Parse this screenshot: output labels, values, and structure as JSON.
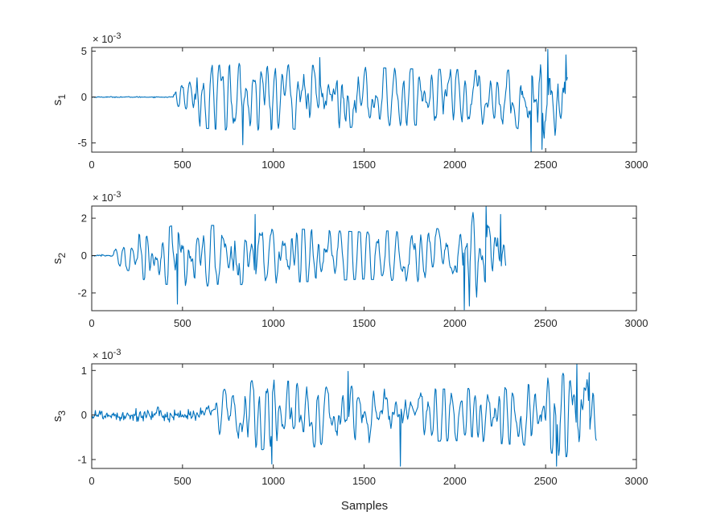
{
  "chart_data": [
    {
      "type": "line",
      "ylabel": "s",
      "ylabel_sub": "1",
      "exponent_base": "× 10",
      "exponent_power": "-3",
      "xlim": [
        0,
        3000
      ],
      "ylim": [
        -6,
        5.4
      ],
      "xticks": [
        0,
        500,
        1000,
        1500,
        2000,
        2500,
        3000
      ],
      "yticks": [
        -5,
        0,
        5
      ],
      "n_samples": 2620,
      "onset": 450,
      "quiet_amp": 0.06,
      "envelope": [
        [
          0,
          0.06
        ],
        [
          440,
          0.06
        ],
        [
          460,
          1.3
        ],
        [
          600,
          3.2
        ],
        [
          800,
          3.5
        ],
        [
          1200,
          3.3
        ],
        [
          1800,
          2.9
        ],
        [
          2300,
          2.8
        ],
        [
          2450,
          4.3
        ],
        [
          2620,
          4.6
        ]
      ],
      "peaks": [
        [
          830,
          -5.2
        ],
        [
          1255,
          4.3
        ],
        [
          2420,
          -6.0
        ],
        [
          2480,
          -5.7
        ],
        [
          2510,
          5.2
        ],
        [
          2610,
          4.6
        ]
      ],
      "line_color": "#0072bd"
    },
    {
      "type": "line",
      "ylabel": "s",
      "ylabel_sub": "2",
      "exponent_base": "× 10",
      "exponent_power": "-3",
      "xlim": [
        0,
        3000
      ],
      "ylim": [
        -2.95,
        2.65
      ],
      "xticks": [
        0,
        500,
        1000,
        1500,
        2000,
        2500,
        3000
      ],
      "yticks": [
        -2,
        0,
        2
      ],
      "n_samples": 2280,
      "onset": 110,
      "quiet_amp": 0.05,
      "envelope": [
        [
          0,
          0.05
        ],
        [
          100,
          0.05
        ],
        [
          130,
          0.4
        ],
        [
          300,
          1.3
        ],
        [
          500,
          1.6
        ],
        [
          900,
          1.45
        ],
        [
          1500,
          1.2
        ],
        [
          1950,
          1.4
        ],
        [
          2100,
          2.2
        ],
        [
          2280,
          2.2
        ]
      ],
      "peaks": [
        [
          470,
          -2.6
        ],
        [
          900,
          2.2
        ],
        [
          2050,
          -2.9
        ],
        [
          2080,
          -2.7
        ],
        [
          2170,
          2.65
        ],
        [
          2250,
          2.2
        ]
      ],
      "line_color": "#0072bd"
    },
    {
      "type": "line",
      "ylabel": "s",
      "ylabel_sub": "3",
      "exponent_base": "× 10",
      "exponent_power": "-3",
      "xlim": [
        0,
        3000
      ],
      "ylim": [
        -1.2,
        1.15
      ],
      "xticks": [
        0,
        500,
        1000,
        1500,
        2000,
        2500,
        3000
      ],
      "yticks": [
        -1,
        0,
        1
      ],
      "n_samples": 2780,
      "onset": 620,
      "quiet_amp": 0.14,
      "envelope": [
        [
          0,
          0.16
        ],
        [
          600,
          0.16
        ],
        [
          650,
          0.35
        ],
        [
          800,
          0.72
        ],
        [
          1000,
          0.75
        ],
        [
          1500,
          0.6
        ],
        [
          2000,
          0.55
        ],
        [
          2400,
          0.65
        ],
        [
          2600,
          0.9
        ],
        [
          2780,
          0.8
        ]
      ],
      "peaks": [
        [
          990,
          -1.1
        ],
        [
          1410,
          0.98
        ],
        [
          1700,
          -1.15
        ],
        [
          2560,
          -1.15
        ],
        [
          2670,
          1.15
        ],
        [
          2740,
          0.95
        ]
      ],
      "line_color": "#0072bd"
    }
  ],
  "xlabel": "Samples"
}
